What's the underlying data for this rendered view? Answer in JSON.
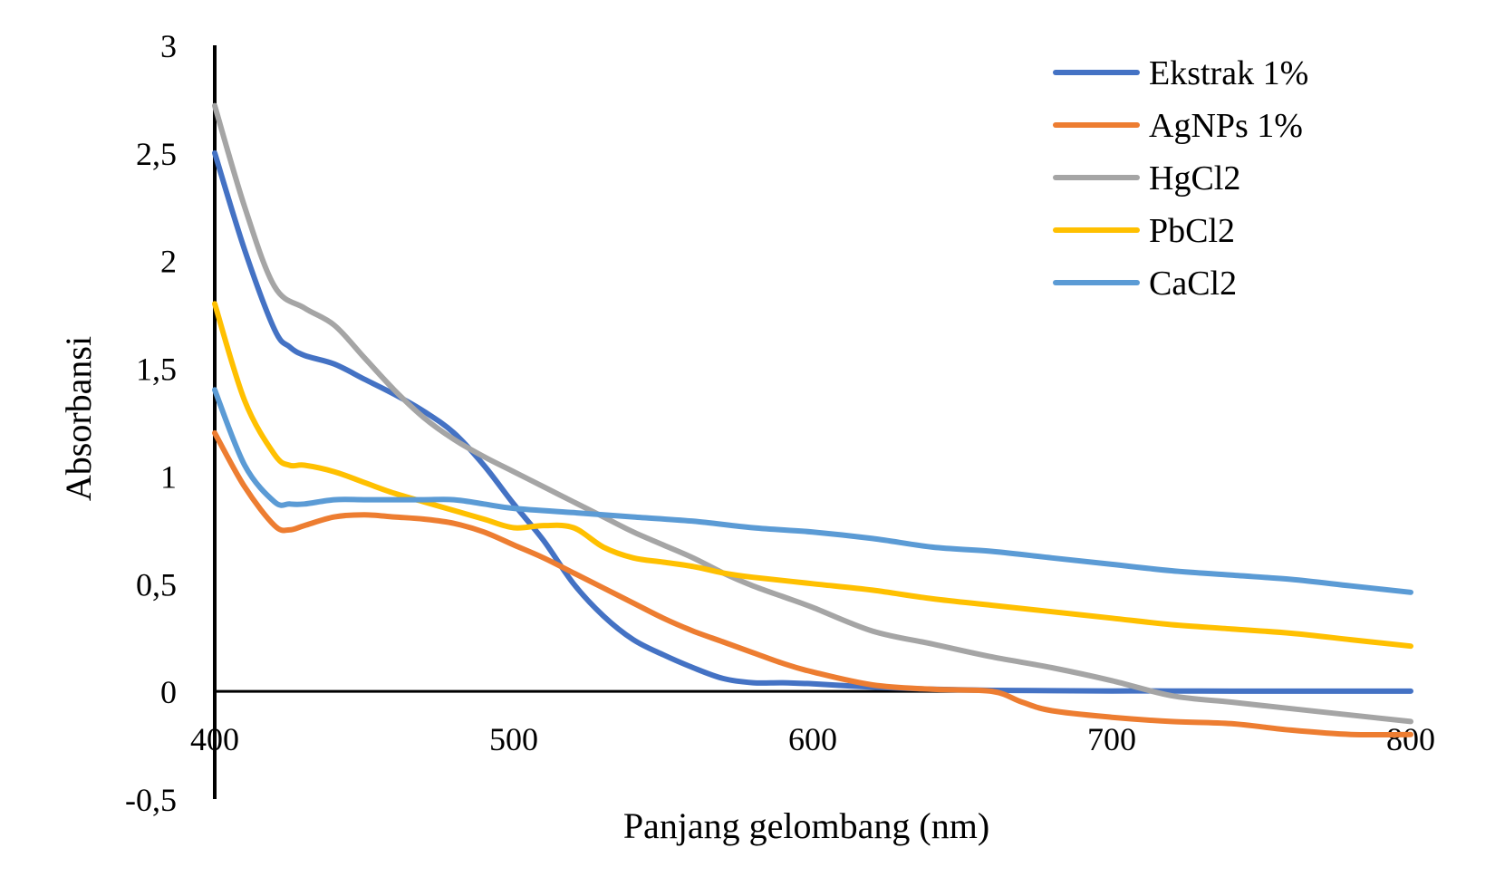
{
  "chart_data": {
    "type": "line",
    "xlabel": "Panjang gelombang (nm)",
    "ylabel": "Absorbansi",
    "xlim": [
      400,
      800
    ],
    "ylim": [
      -0.5,
      3
    ],
    "xticks": [
      "400",
      "500",
      "600",
      "700",
      "800"
    ],
    "yticks": [
      "-0,5",
      "0",
      "0,5",
      "1",
      "1,5",
      "2",
      "2,5",
      "3"
    ],
    "grid": false,
    "legend_position": "top-right",
    "series": [
      {
        "name": "Ekstrak 1%",
        "color": "#4472C4",
        "x": [
          400,
          410,
          420,
          425,
          430,
          440,
          450,
          460,
          470,
          480,
          490,
          500,
          510,
          520,
          530,
          540,
          550,
          560,
          570,
          580,
          590,
          600,
          620,
          640,
          660,
          680,
          700,
          720,
          740,
          760,
          780,
          800
        ],
        "y": [
          2.5,
          2.05,
          1.68,
          1.6,
          1.56,
          1.52,
          1.45,
          1.38,
          1.3,
          1.2,
          1.05,
          0.87,
          0.7,
          0.5,
          0.35,
          0.24,
          0.17,
          0.11,
          0.06,
          0.04,
          0.04,
          0.035,
          0.02,
          0.01,
          0.005,
          0.003,
          0.002,
          0.002,
          0.001,
          0.001,
          0.001,
          0.001
        ]
      },
      {
        "name": "AgNPs 1%",
        "color": "#ED7D31",
        "x": [
          400,
          410,
          420,
          425,
          430,
          440,
          450,
          460,
          470,
          480,
          490,
          500,
          510,
          520,
          530,
          540,
          550,
          560,
          570,
          580,
          590,
          600,
          620,
          640,
          660,
          670,
          680,
          700,
          720,
          740,
          760,
          780,
          800
        ],
        "y": [
          1.2,
          0.95,
          0.77,
          0.75,
          0.77,
          0.81,
          0.82,
          0.81,
          0.8,
          0.78,
          0.74,
          0.68,
          0.62,
          0.55,
          0.48,
          0.41,
          0.34,
          0.28,
          0.23,
          0.18,
          0.13,
          0.09,
          0.03,
          0.01,
          0.0,
          -0.05,
          -0.09,
          -0.12,
          -0.14,
          -0.15,
          -0.18,
          -0.2,
          -0.2
        ]
      },
      {
        "name": "HgCl2",
        "color": "#A5A5A5",
        "x": [
          400,
          410,
          420,
          430,
          440,
          450,
          460,
          470,
          480,
          490,
          500,
          510,
          520,
          530,
          540,
          550,
          560,
          570,
          580,
          590,
          600,
          620,
          640,
          660,
          680,
          700,
          720,
          740,
          760,
          780,
          800
        ],
        "y": [
          2.72,
          2.25,
          1.88,
          1.78,
          1.7,
          1.55,
          1.4,
          1.27,
          1.17,
          1.09,
          1.02,
          0.95,
          0.88,
          0.81,
          0.74,
          0.68,
          0.62,
          0.55,
          0.49,
          0.44,
          0.39,
          0.28,
          0.22,
          0.16,
          0.11,
          0.05,
          -0.02,
          -0.05,
          -0.08,
          -0.11,
          -0.14
        ]
      },
      {
        "name": "PbCl2",
        "color": "#FFC000",
        "x": [
          400,
          410,
          420,
          425,
          430,
          440,
          450,
          460,
          470,
          480,
          490,
          500,
          510,
          520,
          530,
          540,
          550,
          560,
          570,
          580,
          600,
          620,
          640,
          660,
          680,
          700,
          720,
          740,
          760,
          780,
          800
        ],
        "y": [
          1.8,
          1.35,
          1.1,
          1.05,
          1.05,
          1.02,
          0.97,
          0.92,
          0.88,
          0.84,
          0.8,
          0.76,
          0.77,
          0.76,
          0.67,
          0.62,
          0.6,
          0.58,
          0.55,
          0.53,
          0.5,
          0.47,
          0.43,
          0.4,
          0.37,
          0.34,
          0.31,
          0.29,
          0.27,
          0.24,
          0.21
        ]
      },
      {
        "name": "CaCl2",
        "color": "#5B9BD5",
        "x": [
          400,
          410,
          420,
          425,
          430,
          440,
          450,
          460,
          470,
          480,
          490,
          500,
          520,
          540,
          560,
          580,
          600,
          620,
          640,
          660,
          680,
          700,
          720,
          740,
          760,
          780,
          800
        ],
        "y": [
          1.4,
          1.05,
          0.88,
          0.87,
          0.87,
          0.89,
          0.89,
          0.89,
          0.89,
          0.89,
          0.87,
          0.85,
          0.83,
          0.81,
          0.79,
          0.76,
          0.74,
          0.71,
          0.67,
          0.65,
          0.62,
          0.59,
          0.56,
          0.54,
          0.52,
          0.49,
          0.46
        ]
      }
    ]
  }
}
